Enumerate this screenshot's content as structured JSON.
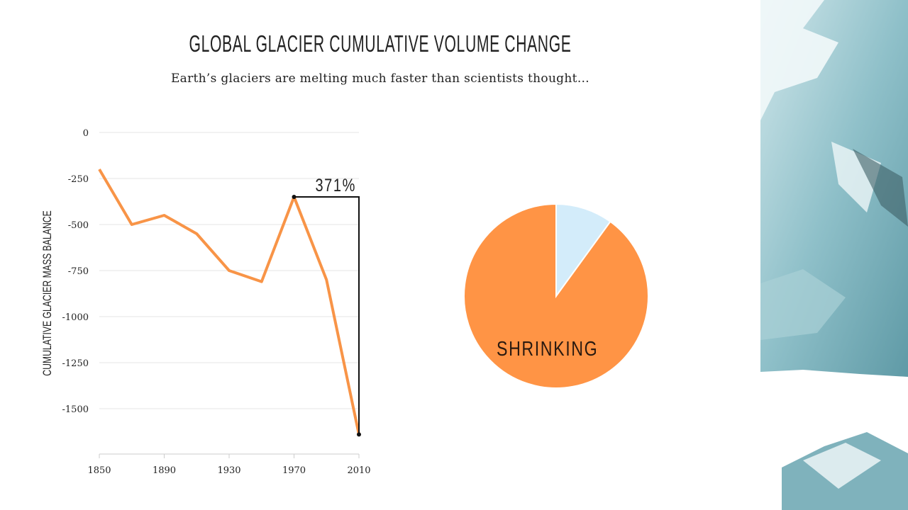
{
  "title": "GLOBAL GLACIER CUMULATIVE VOLUME CHANGE",
  "subtitle": "Earth’s glaciers are melting much faster than scientists thought…",
  "colors": {
    "line": "#F89447",
    "pie_main": "#FF9445",
    "pie_minor": "#D3ECFA",
    "annotation": "#111111"
  },
  "chart_data": [
    {
      "type": "line",
      "title": "",
      "xlabel": "",
      "ylabel": "CUMULATIVE GLACIER MASS BALANCE",
      "x": [
        1850,
        1870,
        1890,
        1910,
        1930,
        1950,
        1970,
        1990,
        2010
      ],
      "values": [
        -200,
        -500,
        -450,
        -550,
        -750,
        -810,
        -350,
        -800,
        -1640
      ],
      "xticks": [
        "1850",
        "1890",
        "1930",
        "1970",
        "2010"
      ],
      "yticks": [
        "0",
        "-250",
        "-500",
        "-750",
        "-1000",
        "-1250",
        "-1500"
      ],
      "ytick_values": [
        0,
        -250,
        -500,
        -750,
        -1000,
        -1250,
        -1500
      ],
      "xlim": [
        1850,
        2010
      ],
      "ylim": [
        -1700,
        0
      ],
      "grid": true,
      "annotation": {
        "label": "371%",
        "from_x": 1970,
        "to_x": 2010
      }
    },
    {
      "type": "pie",
      "slices": [
        {
          "label": "",
          "value": 10
        },
        {
          "label": "SHRINKING",
          "value": 90
        }
      ]
    }
  ]
}
